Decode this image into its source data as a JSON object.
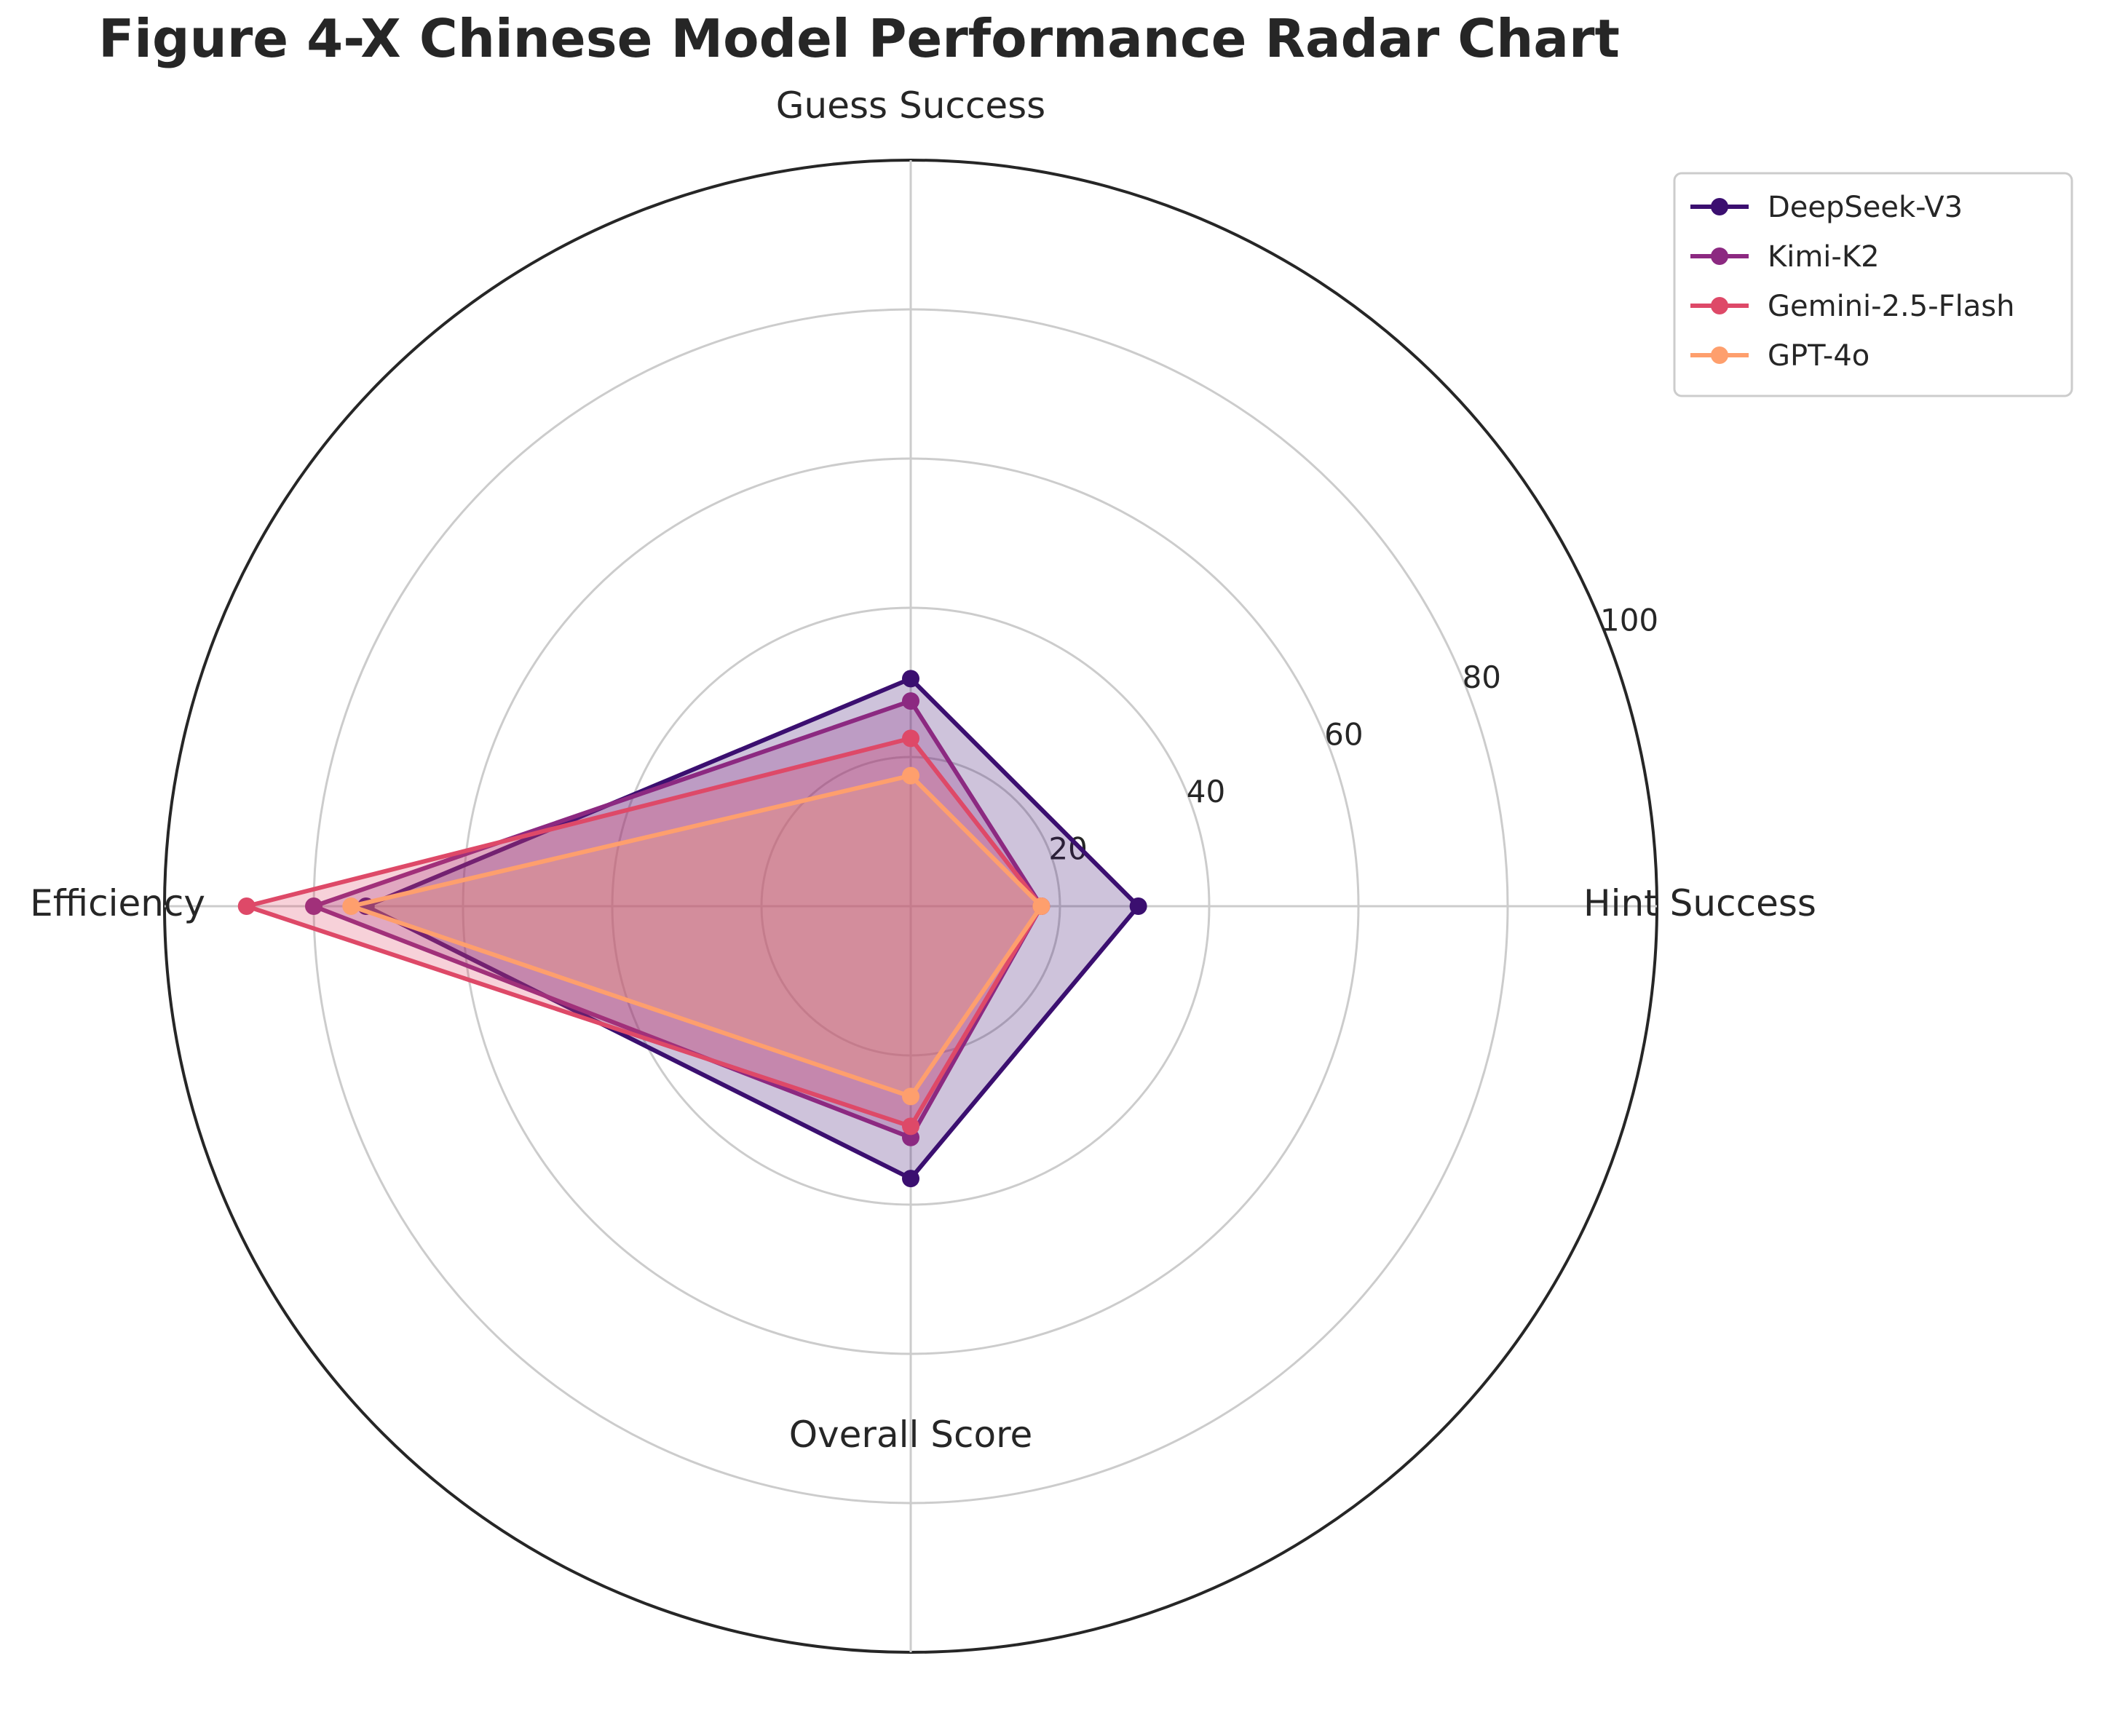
{
  "chart_data": {
    "type": "radar",
    "title": "Figure 4-X Chinese Model Performance Radar Chart",
    "axes": [
      "Hint Success",
      "Guess Success",
      "Efficiency",
      "Overall Score"
    ],
    "rlim": [
      0,
      100
    ],
    "rticks": [
      20,
      40,
      60,
      80,
      100
    ],
    "rtick_labels": [
      "20",
      "40",
      "60",
      "80",
      "100"
    ],
    "grid": true,
    "legend_position": "top-right",
    "series": [
      {
        "name": "DeepSeek-V3",
        "color": "#3b0f70",
        "values": [
          30.5,
          30.5,
          73,
          36.5
        ]
      },
      {
        "name": "Kimi-K2",
        "color": "#8c2981",
        "values": [
          17.5,
          27.5,
          80,
          31
        ]
      },
      {
        "name": "Gemini-2.5-Flash",
        "color": "#de4968",
        "values": [
          17.5,
          22.5,
          89,
          29.5
        ]
      },
      {
        "name": "GPT-4o",
        "color": "#fe9f6d",
        "values": [
          17.5,
          17.5,
          75,
          25.5
        ]
      }
    ]
  }
}
